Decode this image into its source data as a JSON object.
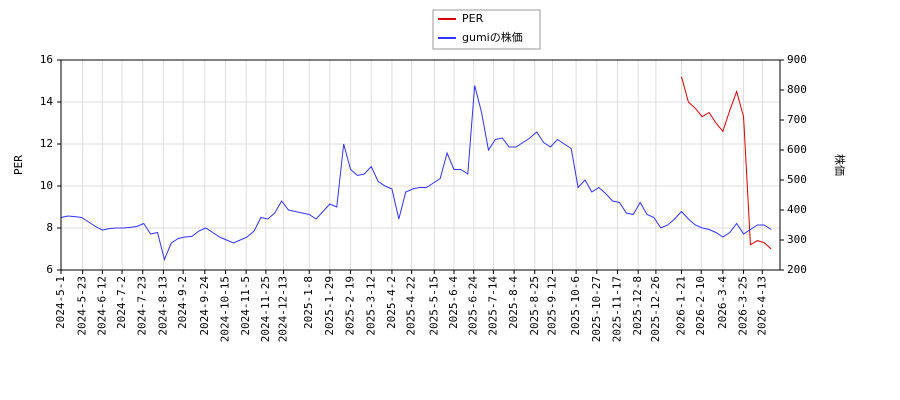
{
  "chart_data": {
    "type": "line",
    "x": [
      "2024-5-1",
      "2024-5-8",
      "2024-5-15",
      "2024-5-22",
      "2024-5-29",
      "2024-6-5",
      "2024-6-12",
      "2024-6-19",
      "2024-6-26",
      "2024-7-3",
      "2024-7-10",
      "2024-7-17",
      "2024-7-24",
      "2024-7-31",
      "2024-8-7",
      "2024-8-14",
      "2024-8-21",
      "2024-8-28",
      "2024-9-4",
      "2024-9-11",
      "2024-9-18",
      "2024-9-25",
      "2024-10-2",
      "2024-10-9",
      "2024-10-16",
      "2024-10-23",
      "2024-10-30",
      "2024-11-6",
      "2024-11-13",
      "2024-11-20",
      "2024-11-27",
      "2024-12-4",
      "2024-12-11",
      "2024-12-18",
      "2024-12-25",
      "2025-1-1",
      "2025-1-8",
      "2025-1-15",
      "2025-1-22",
      "2025-1-29",
      "2025-2-5",
      "2025-2-12",
      "2025-2-19",
      "2025-2-26",
      "2025-3-5",
      "2025-3-12",
      "2025-3-19",
      "2025-3-26",
      "2025-4-2",
      "2025-4-9",
      "2025-4-16",
      "2025-4-23",
      "2025-4-30",
      "2025-5-7",
      "2025-5-14",
      "2025-5-21",
      "2025-5-28",
      "2025-6-4",
      "2025-6-11",
      "2025-6-18",
      "2025-6-25",
      "2025-7-2",
      "2025-7-9",
      "2025-7-16",
      "2025-7-23",
      "2025-7-30",
      "2025-8-6",
      "2025-8-13",
      "2025-8-20",
      "2025-8-27",
      "2025-9-3",
      "2025-9-10",
      "2025-9-17",
      "2025-9-24",
      "2025-10-1",
      "2025-10-8",
      "2025-10-15",
      "2025-10-22",
      "2025-10-29",
      "2025-11-5",
      "2025-11-12",
      "2025-11-19",
      "2025-11-26",
      "2025-12-3",
      "2025-12-10",
      "2025-12-17",
      "2025-12-24",
      "2025-12-31",
      "2026-1-7",
      "2026-1-14",
      "2026-1-21",
      "2026-1-28",
      "2026-2-4",
      "2026-2-11",
      "2026-2-18",
      "2026-2-25",
      "2026-3-4",
      "2026-3-11",
      "2026-3-18",
      "2026-3-25",
      "2026-4-1",
      "2026-4-8",
      "2026-4-15",
      "2026-4-22"
    ],
    "series": [
      {
        "name": "PER",
        "color": "#dd0000",
        "axis": "y",
        "values": [
          null,
          null,
          null,
          null,
          null,
          null,
          null,
          null,
          null,
          null,
          null,
          null,
          null,
          null,
          null,
          null,
          null,
          null,
          null,
          null,
          null,
          null,
          null,
          null,
          null,
          null,
          null,
          null,
          null,
          null,
          null,
          null,
          null,
          null,
          null,
          null,
          null,
          null,
          null,
          null,
          null,
          null,
          null,
          null,
          null,
          null,
          null,
          null,
          null,
          null,
          null,
          null,
          null,
          null,
          null,
          null,
          null,
          null,
          null,
          null,
          null,
          null,
          null,
          null,
          null,
          null,
          null,
          null,
          null,
          null,
          null,
          null,
          null,
          null,
          null,
          null,
          null,
          null,
          null,
          null,
          null,
          null,
          null,
          null,
          null,
          null,
          null,
          null,
          null,
          null,
          15.2,
          14.0,
          13.7,
          13.3,
          13.5,
          13.0,
          12.6,
          13.6,
          14.5,
          13.3,
          7.2,
          7.4,
          7.3,
          7.0
        ]
      },
      {
        "name": "gumiの株価",
        "color": "#3333ff",
        "axis": "y2",
        "values": [
          375,
          380,
          378,
          375,
          360,
          345,
          333,
          338,
          340,
          340,
          342,
          345,
          355,
          320,
          325,
          235,
          290,
          305,
          310,
          312,
          330,
          340,
          325,
          310,
          300,
          290,
          300,
          310,
          330,
          375,
          370,
          390,
          430,
          400,
          395,
          390,
          385,
          370,
          395,
          420,
          410,
          620,
          535,
          515,
          520,
          545,
          495,
          480,
          470,
          370,
          460,
          470,
          475,
          475,
          490,
          505,
          590,
          535,
          535,
          520,
          815,
          725,
          600,
          635,
          640,
          610,
          610,
          625,
          640,
          660,
          625,
          610,
          635,
          620,
          605,
          475,
          500,
          460,
          475,
          455,
          430,
          425,
          390,
          385,
          425,
          385,
          375,
          340,
          350,
          370,
          395,
          370,
          350,
          340,
          335,
          325,
          310,
          325,
          355,
          320,
          335,
          350,
          350,
          335
        ]
      }
    ],
    "xlim": [
      "2024-5-1",
      "2026-5-1"
    ],
    "xticks": [
      "2024-5-1",
      "2024-5-23",
      "2024-6-12",
      "2024-7-2",
      "2024-7-23",
      "2024-8-13",
      "2024-9-2",
      "2024-9-24",
      "2024-10-15",
      "2024-11-5",
      "2024-11-25",
      "2024-12-13",
      "2025-1-8",
      "2025-1-29",
      "2025-2-19",
      "2025-3-12",
      "2025-4-2",
      "2025-4-22",
      "2025-5-15",
      "2025-6-4",
      "2025-6-24",
      "2025-7-14",
      "2025-8-4",
      "2025-8-25",
      "2025-9-12",
      "2025-10-6",
      "2025-10-27",
      "2025-11-17",
      "2025-12-8",
      "2025-12-26",
      "2026-1-21",
      "2026-2-10",
      "2026-3-4",
      "2026-3-25",
      "2026-4-13"
    ],
    "ylim": [
      6,
      16
    ],
    "yticks": [
      6,
      8,
      10,
      12,
      14,
      16
    ],
    "y2lim": [
      200,
      900
    ],
    "y2ticks": [
      200,
      300,
      400,
      500,
      600,
      700,
      800,
      900
    ],
    "ylabel": "PER",
    "y2label": "株価",
    "grid": true,
    "legend": "top"
  }
}
